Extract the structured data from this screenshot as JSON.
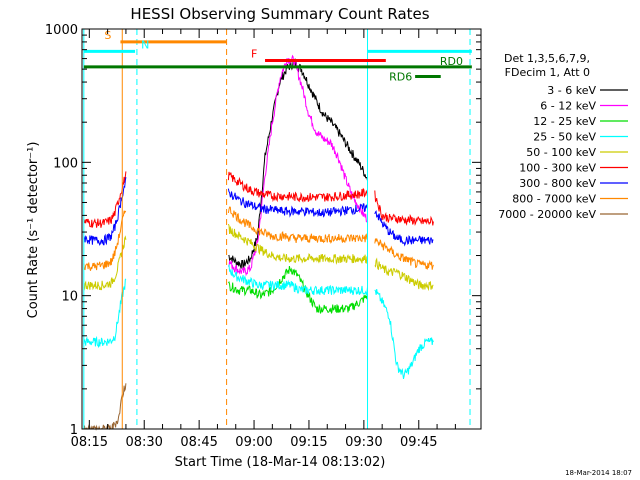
{
  "chart_data": {
    "type": "line",
    "title": "HESSI Observing Summary Count Rates",
    "xlabel": "Start Time (18-Mar-14 08:13:02)",
    "ylabel": "Count Rate (s⁻¹ detector⁻¹)",
    "x_ticks": [
      "08:15",
      "08:30",
      "08:45",
      "09:00",
      "09:15",
      "09:30",
      "09:45"
    ],
    "x_tick_minutes": [
      15,
      30,
      45,
      60,
      75,
      90,
      105
    ],
    "xlim_minutes": [
      13.0,
      122.0
    ],
    "y_scale": "log",
    "ylim": [
      1,
      1000
    ],
    "y_ticks": [
      1,
      10,
      100,
      1000
    ],
    "y_tick_labels": [
      "1",
      "10",
      "100",
      "1000"
    ],
    "legend_placement": "right",
    "legend_header": [
      "Det 1,3,5,6,7,9,",
      "FDecim 1, Att 0"
    ],
    "timestamp": "18-Mar-2014 18:07",
    "data_gaps": [
      {
        "start": 25,
        "end": 53
      },
      {
        "start": 91,
        "end": 93
      }
    ],
    "series": [
      {
        "name": "3 - 6 keV",
        "color": "#000000",
        "points": [
          [
            53,
            20
          ],
          [
            55,
            18
          ],
          [
            57,
            17
          ],
          [
            59,
            19
          ],
          [
            61,
            28
          ],
          [
            63,
            110
          ],
          [
            65,
            220
          ],
          [
            67,
            400
          ],
          [
            69,
            510
          ],
          [
            71,
            560
          ],
          [
            73,
            500
          ],
          [
            75,
            380
          ],
          [
            77,
            290
          ],
          [
            79,
            230
          ],
          [
            81,
            200
          ],
          [
            83,
            170
          ],
          [
            85,
            140
          ],
          [
            87,
            115
          ],
          [
            89,
            95
          ],
          [
            90,
            85
          ],
          [
            91,
            75
          ],
          [
            91.5,
            25
          ]
        ]
      },
      {
        "name": "6 - 12 keV",
        "color": "#ff00ff",
        "points": [
          [
            53,
            18
          ],
          [
            55,
            16
          ],
          [
            57,
            15
          ],
          [
            59,
            16
          ],
          [
            61,
            25
          ],
          [
            63,
            80
          ],
          [
            65,
            200
          ],
          [
            67,
            420
          ],
          [
            69,
            600
          ],
          [
            71,
            580
          ],
          [
            73,
            380
          ],
          [
            75,
            230
          ],
          [
            77,
            170
          ],
          [
            79,
            150
          ],
          [
            81,
            140
          ],
          [
            83,
            110
          ],
          [
            85,
            75
          ],
          [
            87,
            55
          ],
          [
            89,
            45
          ],
          [
            90,
            40
          ],
          [
            91,
            38
          ],
          [
            91.5,
            9
          ]
        ]
      },
      {
        "name": "12 - 25 keV",
        "color": "#00dd00",
        "points": [
          [
            53,
            12
          ],
          [
            56,
            11
          ],
          [
            59,
            11
          ],
          [
            62,
            10
          ],
          [
            65,
            11
          ],
          [
            68,
            14
          ],
          [
            70,
            16
          ],
          [
            72,
            14
          ],
          [
            74,
            11
          ],
          [
            77,
            8
          ],
          [
            80,
            8
          ],
          [
            83,
            8
          ],
          [
            86,
            8
          ],
          [
            89,
            9
          ],
          [
            91,
            10
          ],
          [
            91.5,
            9
          ]
        ]
      },
      {
        "name": "25 - 50 keV",
        "color": "#00ffff",
        "points": [
          [
            13.5,
            4.5
          ],
          [
            16,
            4.5
          ],
          [
            19,
            4.5
          ],
          [
            21,
            4.6
          ],
          [
            22,
            5
          ],
          [
            23,
            7
          ],
          [
            24,
            10
          ],
          [
            25,
            13
          ],
          [
            53,
            16
          ],
          [
            55,
            14
          ],
          [
            58,
            13
          ],
          [
            61,
            12
          ],
          [
            64,
            12
          ],
          [
            67,
            12
          ],
          [
            70,
            12
          ],
          [
            73,
            11
          ],
          [
            76,
            11
          ],
          [
            79,
            11
          ],
          [
            82,
            11
          ],
          [
            85,
            11
          ],
          [
            88,
            11
          ],
          [
            91,
            11
          ],
          [
            93,
            11
          ],
          [
            95,
            9
          ],
          [
            97,
            7
          ],
          [
            99,
            3
          ],
          [
            101,
            2.5
          ],
          [
            103,
            3
          ],
          [
            105,
            4
          ],
          [
            107,
            4.5
          ],
          [
            109,
            4.5
          ]
        ]
      },
      {
        "name": "50 - 100 keV",
        "color": "#cccc00",
        "points": [
          [
            13.5,
            12
          ],
          [
            16,
            12
          ],
          [
            19,
            12
          ],
          [
            21,
            12.5
          ],
          [
            22,
            14
          ],
          [
            23,
            17
          ],
          [
            24,
            22
          ],
          [
            25,
            28
          ],
          [
            53,
            32
          ],
          [
            56,
            28
          ],
          [
            59,
            25
          ],
          [
            62,
            22
          ],
          [
            65,
            20
          ],
          [
            68,
            19
          ],
          [
            71,
            19
          ],
          [
            74,
            19
          ],
          [
            77,
            19
          ],
          [
            80,
            19
          ],
          [
            83,
            19
          ],
          [
            86,
            19
          ],
          [
            89,
            19
          ],
          [
            91,
            19
          ],
          [
            93,
            18
          ],
          [
            95,
            16
          ],
          [
            97,
            15
          ],
          [
            99,
            15
          ],
          [
            101,
            14
          ],
          [
            103,
            13
          ],
          [
            105,
            12
          ],
          [
            107,
            12
          ],
          [
            109,
            12
          ]
        ]
      },
      {
        "name": "100 - 300 keV",
        "color": "#ff0000",
        "points": [
          [
            13.5,
            36
          ],
          [
            16,
            35
          ],
          [
            19,
            35
          ],
          [
            21,
            37
          ],
          [
            22,
            42
          ],
          [
            23,
            52
          ],
          [
            24,
            66
          ],
          [
            25,
            80
          ],
          [
            53,
            80
          ],
          [
            56,
            70
          ],
          [
            59,
            62
          ],
          [
            62,
            58
          ],
          [
            65,
            56
          ],
          [
            68,
            56
          ],
          [
            71,
            55
          ],
          [
            74,
            55
          ],
          [
            77,
            55
          ],
          [
            80,
            55
          ],
          [
            83,
            56
          ],
          [
            86,
            57
          ],
          [
            89,
            58
          ],
          [
            91,
            60
          ],
          [
            93,
            57
          ],
          [
            95,
            40
          ],
          [
            97,
            38
          ],
          [
            99,
            38
          ],
          [
            101,
            37
          ],
          [
            103,
            37
          ],
          [
            105,
            36
          ],
          [
            107,
            36
          ],
          [
            109,
            36
          ]
        ]
      },
      {
        "name": "300 - 800 keV",
        "color": "#0000ff",
        "points": [
          [
            13.5,
            27
          ],
          [
            16,
            26
          ],
          [
            19,
            26
          ],
          [
            21,
            28
          ],
          [
            22,
            33
          ],
          [
            23,
            42
          ],
          [
            24,
            58
          ],
          [
            25,
            72
          ],
          [
            53,
            60
          ],
          [
            56,
            52
          ],
          [
            59,
            48
          ],
          [
            62,
            45
          ],
          [
            65,
            44
          ],
          [
            68,
            43
          ],
          [
            71,
            43
          ],
          [
            74,
            43
          ],
          [
            77,
            42
          ],
          [
            80,
            42
          ],
          [
            83,
            43
          ],
          [
            86,
            44
          ],
          [
            89,
            45
          ],
          [
            91,
            46
          ],
          [
            93,
            44
          ],
          [
            95,
            35
          ],
          [
            97,
            30
          ],
          [
            99,
            27
          ],
          [
            101,
            26
          ],
          [
            103,
            26
          ],
          [
            105,
            26
          ],
          [
            107,
            26
          ],
          [
            109,
            26
          ]
        ]
      },
      {
        "name": "800 - 7000 keV",
        "color": "#ff8800",
        "points": [
          [
            13.5,
            17
          ],
          [
            16,
            16.5
          ],
          [
            19,
            17
          ],
          [
            21,
            18
          ],
          [
            22,
            21
          ],
          [
            23,
            27
          ],
          [
            24,
            36
          ],
          [
            25,
            45
          ],
          [
            53,
            45
          ],
          [
            56,
            38
          ],
          [
            59,
            33
          ],
          [
            62,
            30
          ],
          [
            65,
            28
          ],
          [
            68,
            28
          ],
          [
            71,
            27
          ],
          [
            74,
            27
          ],
          [
            77,
            27
          ],
          [
            80,
            27
          ],
          [
            83,
            27
          ],
          [
            86,
            27
          ],
          [
            89,
            27
          ],
          [
            91,
            27
          ],
          [
            93,
            26
          ],
          [
            95,
            24
          ],
          [
            97,
            22
          ],
          [
            99,
            20
          ],
          [
            101,
            19
          ],
          [
            103,
            18
          ],
          [
            105,
            17
          ],
          [
            107,
            17
          ],
          [
            109,
            17
          ]
        ]
      },
      {
        "name": "7000 - 20000 keV",
        "color": "#996633",
        "points": [
          [
            13.5,
            1
          ],
          [
            21,
            1
          ],
          [
            23,
            1.2
          ],
          [
            24,
            1.8
          ],
          [
            25,
            2.2
          ]
        ]
      }
    ],
    "status_bars": [
      {
        "label": "S",
        "color": "#ff8800",
        "start": 23.5,
        "end": 52.5,
        "value": 800
      },
      {
        "label": "N",
        "color": "#00ffff",
        "start": 13.5,
        "end": 27.5,
        "value": 680
      },
      {
        "label": "F",
        "color": "#ff0000",
        "start": 63.0,
        "end": 96.0,
        "value": 580
      },
      {
        "label": "",
        "color": "#00ffff",
        "start": 91.0,
        "end": 119.5,
        "value": 680
      },
      {
        "label": "RD0",
        "color": "#007700",
        "start": 13.5,
        "end": 119.5,
        "value": 520
      },
      {
        "label": "RD6",
        "color": "#007700",
        "start": 104.0,
        "end": 111.0,
        "value": 440
      }
    ],
    "vertical_lines": [
      {
        "x": 24.0,
        "color": "#ff8800",
        "style": "solid"
      },
      {
        "x": 52.5,
        "color": "#ff8800",
        "style": "dashed"
      },
      {
        "x": 28.0,
        "color": "#00ffff",
        "style": "dashed"
      },
      {
        "x": 91.0,
        "color": "#00ffff",
        "style": "solid"
      },
      {
        "x": 119.0,
        "color": "#00ffff",
        "style": "dashed"
      },
      {
        "x": 13.5,
        "color": "#00ffff",
        "style": "solid"
      }
    ]
  }
}
